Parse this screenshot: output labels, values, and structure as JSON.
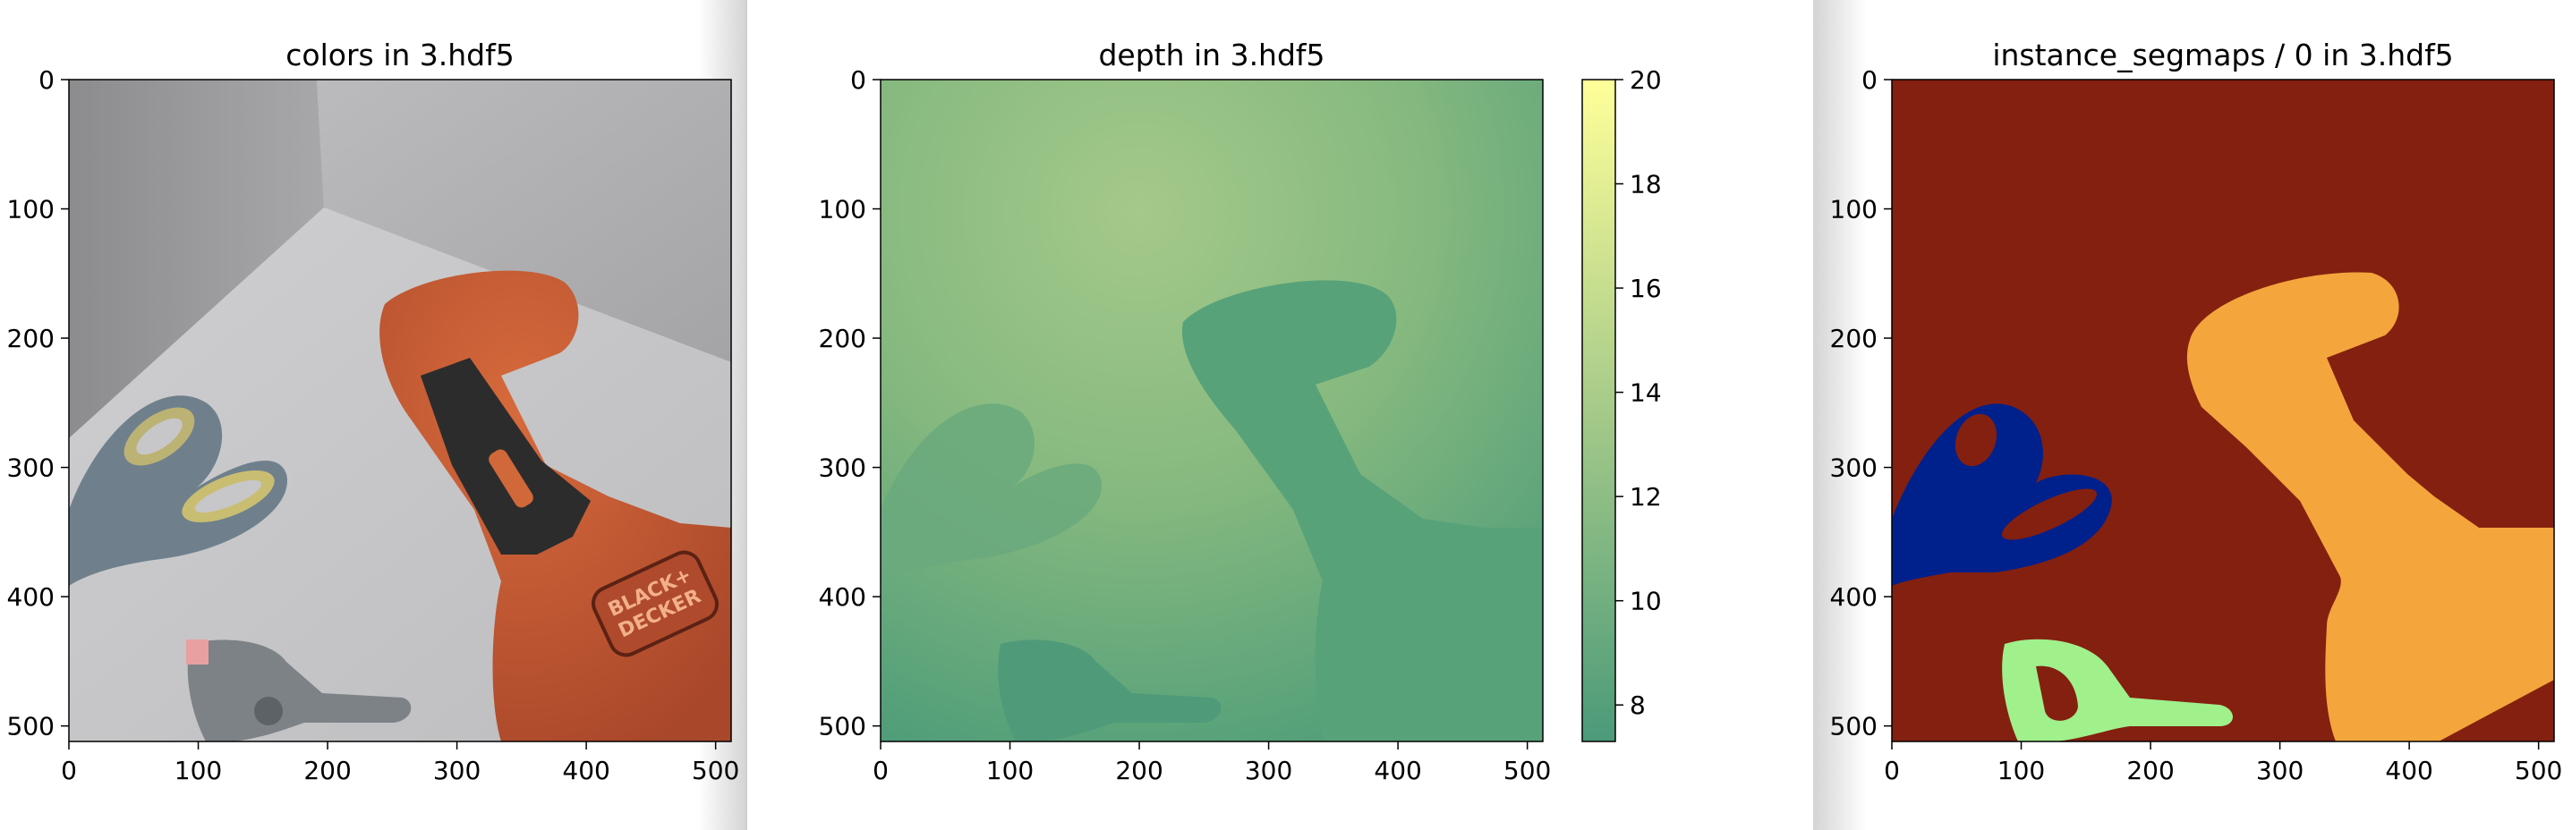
{
  "window": {
    "background": "#ffffff",
    "gutter_color": "#d9d9d9"
  },
  "chart_data": [
    {
      "type": "image",
      "title": "colors in 3.hdf5",
      "xlim": [
        0,
        512
      ],
      "ylim": [
        512,
        0
      ],
      "xticks": [
        0,
        100,
        200,
        300,
        400,
        500
      ],
      "yticks": [
        0,
        100,
        200,
        300,
        400,
        500
      ],
      "content": "RGB render of a room corner with a drill, scissors and a clamp",
      "objects": [
        {
          "name": "power-drill",
          "color": "#c85a32",
          "brand_text": "BLACK+ DECKER"
        },
        {
          "name": "scissors",
          "color": "#6f808c"
        },
        {
          "name": "spring-clamp",
          "color": "#7c8286"
        }
      ]
    },
    {
      "type": "heatmap",
      "title": "depth in 3.hdf5",
      "xlim": [
        0,
        512
      ],
      "ylim": [
        512,
        0
      ],
      "xticks": [
        0,
        100,
        200,
        300,
        400,
        500
      ],
      "yticks": [
        0,
        100,
        200,
        300,
        400,
        500
      ],
      "colormap": "summer",
      "colorbar": {
        "vmin": 7.3,
        "vmax": 20,
        "ticks": [
          8,
          10,
          12,
          14,
          16,
          18,
          20
        ]
      },
      "depth_estimates": {
        "wall_corner": 13.5,
        "floor_far": 12.0,
        "floor_near": 9.5,
        "drill": 9.0,
        "scissors": 10.5,
        "clamp": 9.0
      }
    },
    {
      "type": "heatmap",
      "title": "instance_segmaps / 0 in 3.hdf5",
      "xlim": [
        0,
        512
      ],
      "ylim": [
        512,
        0
      ],
      "xticks": [
        0,
        100,
        200,
        300,
        400,
        500
      ],
      "yticks": [
        0,
        100,
        200,
        300,
        400,
        500
      ],
      "colormap": "jet",
      "instances": [
        {
          "name": "background",
          "color": "#84200f"
        },
        {
          "name": "drill",
          "color": "#f4a53c"
        },
        {
          "name": "scissors",
          "color": "#00208c"
        },
        {
          "name": "clamp",
          "color": "#a0f08c"
        }
      ]
    }
  ]
}
